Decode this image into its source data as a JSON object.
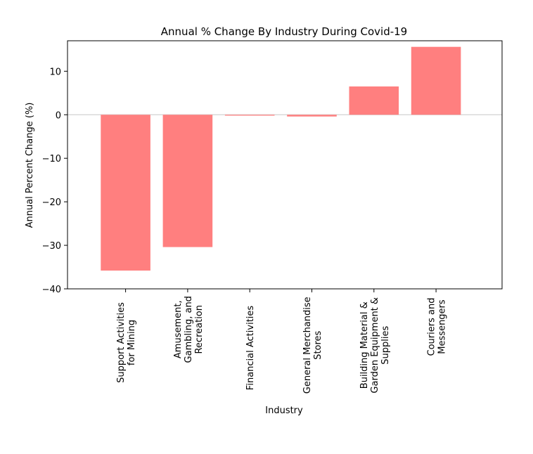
{
  "chart_data": {
    "type": "bar",
    "title": "Annual % Change By Industry During Covid-19",
    "xlabel": "Industry",
    "ylabel": "Annual Percent Change (%)",
    "ylim": [
      -40,
      17
    ],
    "yticks": [
      10,
      0,
      -10,
      -20,
      -30,
      -40
    ],
    "ytick_labels": [
      "10",
      "0",
      "−10",
      "−20",
      "−30",
      "−40"
    ],
    "categories": [
      "Support Activities\nfor Mining",
      "Amusement,\nGambling, and\nRecreation",
      "Financial Activities",
      "General Merchandise\nStores",
      "Building Material &\nGarden Equipment &\nSupplies",
      "Couriers and\nMessengers"
    ],
    "values": [
      -35.8,
      -30.4,
      -0.2,
      -0.4,
      6.5,
      15.6
    ],
    "grid": false,
    "zero_line": true,
    "colors": {
      "bar": "#ff7f7f",
      "zero_line": "#d3d3d3",
      "axes": "#000000"
    }
  }
}
